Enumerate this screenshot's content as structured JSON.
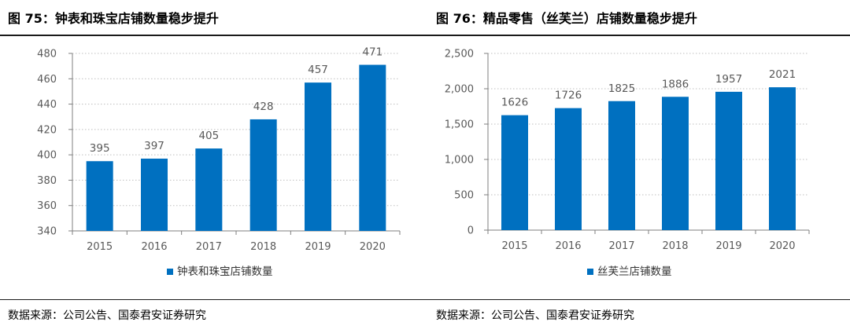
{
  "panels": [
    {
      "title": "图 75：钟表和珠宝店铺数量稳步提升",
      "source": "数据来源：公司公告、国泰君安证券研究"
    },
    {
      "title": "图 76：精品零售（丝芙兰）店铺数量稳步提升",
      "source": "数据来源：公司公告、国泰君安证券研究"
    }
  ],
  "chart_data": [
    {
      "type": "bar",
      "title": "图 75：钟表和珠宝店铺数量稳步提升",
      "categories": [
        "2015",
        "2016",
        "2017",
        "2018",
        "2019",
        "2020"
      ],
      "series": [
        {
          "name": "钟表和珠宝店铺数量",
          "values": [
            395,
            397,
            405,
            428,
            457,
            471
          ],
          "color": "#0070C0"
        }
      ],
      "data_labels": [
        "395",
        "397",
        "405",
        "428",
        "457",
        "471"
      ],
      "ylim": [
        340,
        480
      ],
      "yticks": [
        340,
        360,
        380,
        400,
        420,
        440,
        460,
        480
      ],
      "ytick_labels": [
        "340",
        "360",
        "380",
        "400",
        "420",
        "440",
        "460",
        "480"
      ],
      "xlabel": "",
      "ylabel": "",
      "grid": "horizontal-dotted",
      "legend": "bottom"
    },
    {
      "type": "bar",
      "title": "图 76：精品零售（丝芙兰）店铺数量稳步提升",
      "categories": [
        "2015",
        "2016",
        "2017",
        "2018",
        "2019",
        "2020"
      ],
      "series": [
        {
          "name": "丝芙兰店铺数量",
          "values": [
            1626,
            1726,
            1825,
            1886,
            1957,
            2021
          ],
          "color": "#0070C0"
        }
      ],
      "data_labels": [
        "1626",
        "1726",
        "1825",
        "1886",
        "1957",
        "2021"
      ],
      "ylim": [
        0,
        2500
      ],
      "yticks": [
        0,
        500,
        1000,
        1500,
        2000,
        2500
      ],
      "ytick_labels": [
        "0",
        "500",
        "1,000",
        "1,500",
        "2,000",
        "2,500"
      ],
      "xlabel": "",
      "ylabel": "",
      "grid": "horizontal-dotted",
      "legend": "bottom"
    }
  ]
}
